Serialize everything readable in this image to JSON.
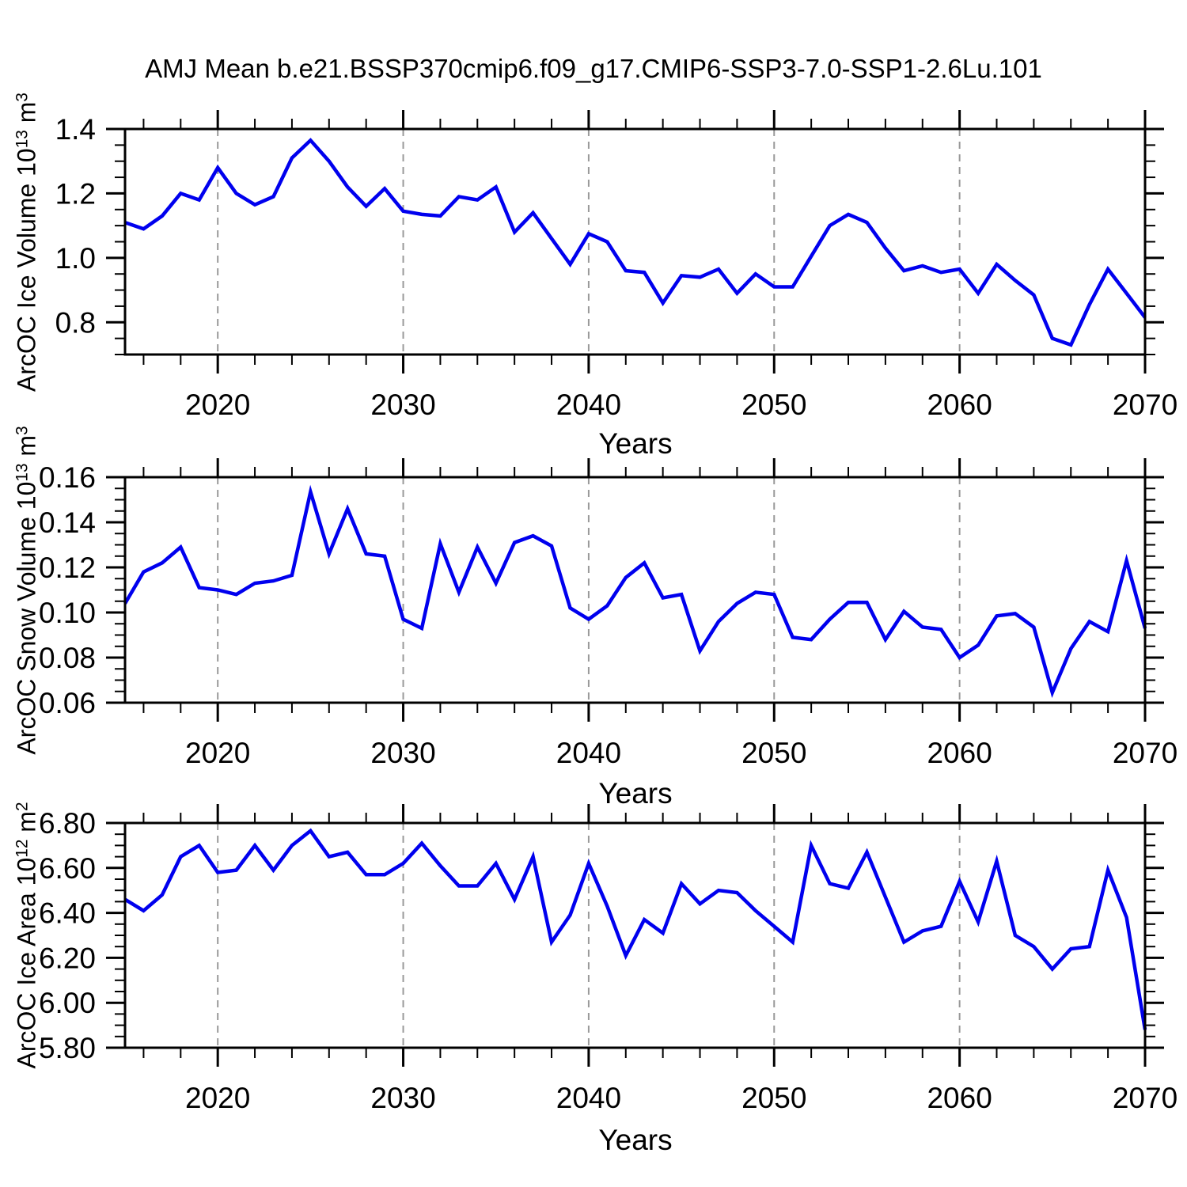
{
  "title": "AMJ Mean b.e21.BSSP370cmip6.f09_g17.CMIP6-SSP3-7.0-SSP1-2.6Lu.101",
  "xlabel": "Years",
  "xticks": [
    "2020",
    "2030",
    "2040",
    "2050",
    "2060",
    "2070"
  ],
  "gridline_years": [
    2020,
    2030,
    2040,
    2050,
    2060
  ],
  "x_range": [
    2015,
    2070
  ],
  "x_minor_step": 2,
  "colors": {
    "line": "#0000ee",
    "grid": "#999999",
    "axis": "#000000",
    "background": "#ffffff",
    "text": "#000000"
  },
  "chart_data": [
    {
      "type": "line",
      "title": "ArcOC Ice Volume",
      "ylabel": "ArcOC Ice Volume 10^13 m^3",
      "ylabel_prefix": "ArcOC Ice Volume 10",
      "ylabel_exp": "13",
      "ylabel_unit": " m",
      "ylabel_unit_exp": "3",
      "xlabel": "Years",
      "x_start": 2015,
      "x_step": 1,
      "ylim": [
        0.7,
        1.4
      ],
      "ytick_values": [
        0.8,
        1.0,
        1.2,
        1.4
      ],
      "ytick_labels": [
        "0.8",
        "1.0",
        "1.2",
        "1.4"
      ],
      "yminor_step": 0.05,
      "grid": true,
      "legend": "none",
      "values": [
        1.11,
        1.09,
        1.13,
        1.2,
        1.18,
        1.28,
        1.2,
        1.165,
        1.19,
        1.31,
        1.365,
        1.3,
        1.22,
        1.16,
        1.215,
        1.145,
        1.135,
        1.13,
        1.19,
        1.18,
        1.22,
        1.08,
        1.14,
        1.06,
        0.98,
        1.075,
        1.05,
        0.96,
        0.955,
        0.86,
        0.945,
        0.94,
        0.965,
        0.89,
        0.95,
        0.91,
        0.91,
        1.005,
        1.1,
        1.135,
        1.11,
        1.03,
        0.96,
        0.975,
        0.955,
        0.965,
        0.89,
        0.98,
        0.93,
        0.885,
        0.75,
        0.73,
        0.855,
        0.965,
        0.89,
        0.815
      ]
    },
    {
      "type": "line",
      "title": "ArcOC Snow Volume",
      "ylabel": "ArcOC Snow Volume 10^13 m^3",
      "ylabel_prefix": "ArcOC Snow Volume 10",
      "ylabel_exp": "13",
      "ylabel_unit": " m",
      "ylabel_unit_exp": "3",
      "xlabel": "Years",
      "x_start": 2015,
      "x_step": 1,
      "ylim": [
        0.06,
        0.16
      ],
      "ytick_values": [
        0.06,
        0.08,
        0.1,
        0.12,
        0.14,
        0.16
      ],
      "ytick_labels": [
        "0.06",
        "0.08",
        "0.10",
        "0.12",
        "0.14",
        "0.16"
      ],
      "yminor_step": 0.005,
      "grid": true,
      "legend": "none",
      "values": [
        0.104,
        0.118,
        0.122,
        0.129,
        0.111,
        0.11,
        0.108,
        0.113,
        0.114,
        0.1165,
        0.1535,
        0.126,
        0.146,
        0.126,
        0.125,
        0.097,
        0.093,
        0.1305,
        0.109,
        0.129,
        0.113,
        0.131,
        0.134,
        0.1295,
        0.102,
        0.097,
        0.103,
        0.1155,
        0.122,
        0.1065,
        0.108,
        0.083,
        0.096,
        0.104,
        0.109,
        0.108,
        0.089,
        0.088,
        0.097,
        0.1045,
        0.1045,
        0.088,
        0.1005,
        0.0935,
        0.0925,
        0.08,
        0.0855,
        0.0985,
        0.0995,
        0.0935,
        0.0645,
        0.084,
        0.096,
        0.0915,
        0.123,
        0.093
      ]
    },
    {
      "type": "line",
      "title": "ArcOC Ice Area",
      "ylabel": "ArcOC Ice Area 10^12 m^2",
      "ylabel_prefix": "ArcOC Ice Area 10",
      "ylabel_exp": "12",
      "ylabel_unit": " m",
      "ylabel_unit_exp": "2",
      "xlabel": "Years",
      "x_start": 2015,
      "x_step": 1,
      "ylim": [
        5.8,
        6.8
      ],
      "ytick_values": [
        5.8,
        6.0,
        6.2,
        6.4,
        6.6,
        6.8
      ],
      "ytick_labels": [
        "5.80",
        "6.00",
        "6.20",
        "6.40",
        "6.60",
        "6.80"
      ],
      "yminor_step": 0.05,
      "grid": true,
      "legend": "none",
      "values": [
        6.46,
        6.41,
        6.48,
        6.65,
        6.7,
        6.58,
        6.59,
        6.7,
        6.59,
        6.7,
        6.765,
        6.65,
        6.67,
        6.57,
        6.57,
        6.62,
        6.71,
        6.61,
        6.52,
        6.52,
        6.62,
        6.46,
        6.65,
        6.27,
        6.39,
        6.62,
        6.43,
        6.21,
        6.37,
        6.31,
        6.53,
        6.44,
        6.5,
        6.49,
        6.41,
        6.34,
        6.27,
        6.7,
        6.53,
        6.51,
        6.67,
        6.47,
        6.27,
        6.32,
        6.34,
        6.54,
        6.36,
        6.63,
        6.3,
        6.25,
        6.15,
        6.24,
        6.25,
        6.59,
        6.38,
        5.88
      ]
    }
  ]
}
